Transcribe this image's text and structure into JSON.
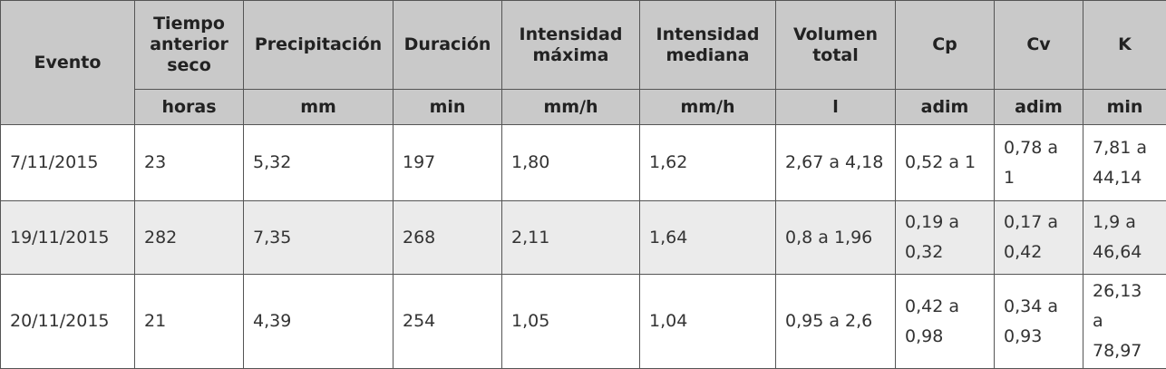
{
  "table": {
    "first_header": "Evento",
    "columns": [
      {
        "label": "Tiempo anterior seco",
        "unit": "horas"
      },
      {
        "label": "Precipitación",
        "unit": "mm"
      },
      {
        "label": "Duración",
        "unit": "min"
      },
      {
        "label": "Intensidad máxima",
        "unit": "mm/h"
      },
      {
        "label": "Intensidad mediana",
        "unit": "mm/h"
      },
      {
        "label": "Volumen total",
        "unit": "l"
      },
      {
        "label": "Cp",
        "unit": "adim"
      },
      {
        "label": "Cv",
        "unit": "adim"
      },
      {
        "label": "K",
        "unit": "min"
      }
    ],
    "rows": [
      [
        "7/11/2015",
        "23",
        "5,32",
        "197",
        "1,80",
        "1,62",
        "2,67 a 4,18",
        "0,52 a 1",
        "0,78 a 1",
        "7,81 a 44,14"
      ],
      [
        "19/11/2015",
        "282",
        "7,35",
        "268",
        "2,11",
        "1,64",
        "0,8 a 1,96",
        "0,19 a 0,32",
        "0,17 a 0,42",
        "1,9 a 46,64"
      ],
      [
        "20/11/2015",
        "21",
        "4,39",
        "254",
        "1,05",
        "1,04",
        "0,95 a 2,6",
        "0,42 a 0,98",
        "0,34 a 0,93",
        "26,13 a 78,97"
      ]
    ]
  }
}
